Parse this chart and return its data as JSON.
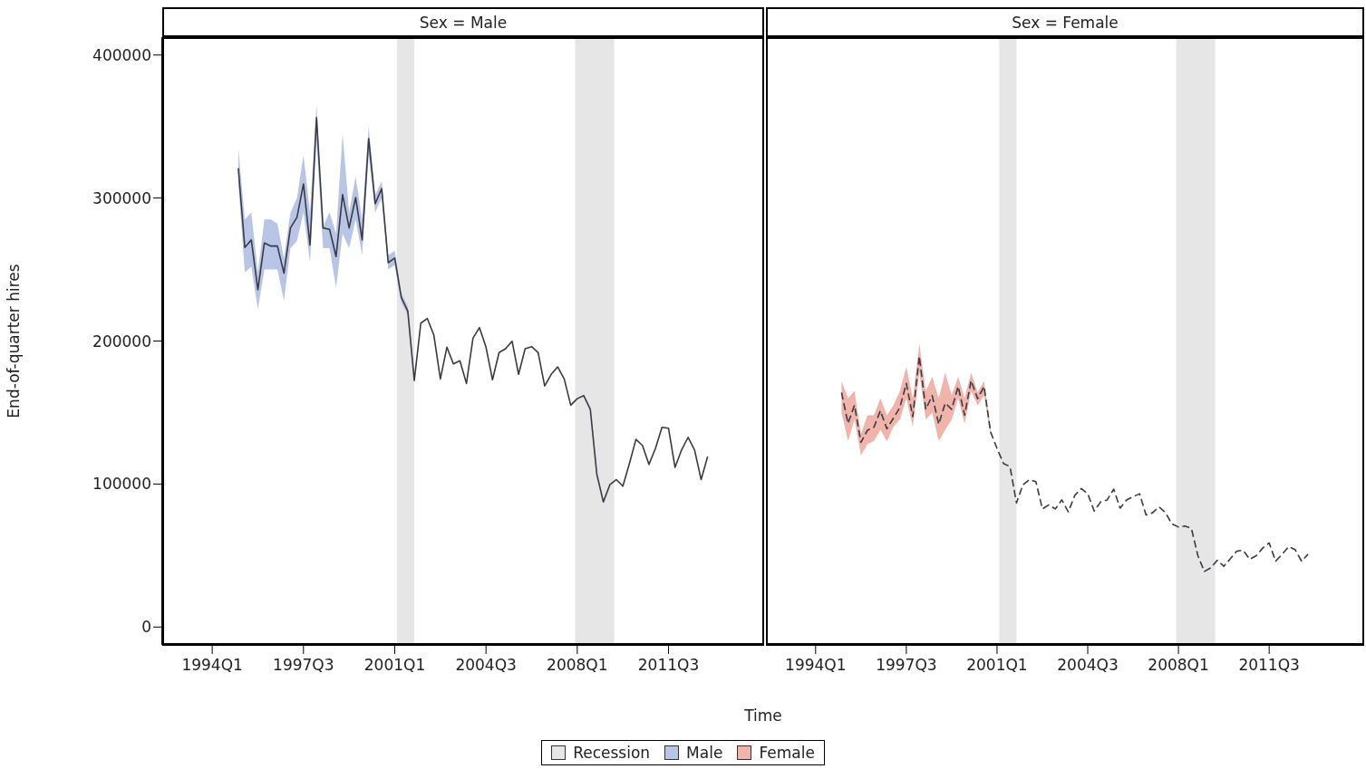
{
  "chart_data": [
    {
      "type": "line",
      "title": "Sex = Male",
      "xlabel": "Time",
      "ylabel": "End-of-quarter hires",
      "xlim": [
        "1992-02",
        "2015-03"
      ],
      "ylim": [
        -12500,
        412500
      ],
      "xticks": [
        {
          "value": "1994-01",
          "label": "1994Q1"
        },
        {
          "value": "1997-07",
          "label": "1997Q3"
        },
        {
          "value": "2001-01",
          "label": "2001Q1"
        },
        {
          "value": "2004-07",
          "label": "2004Q3"
        },
        {
          "value": "2008-01",
          "label": "2008Q1"
        },
        {
          "value": "2011-07",
          "label": "2011Q3"
        }
      ],
      "yticks": [
        0,
        100000,
        200000,
        300000,
        400000
      ],
      "legend": "bottom",
      "line_style": "solid",
      "bands": [
        {
          "axis": "x",
          "from": "2001-02",
          "to": "2001-10",
          "label": "Recession",
          "color": "#e6e6e6"
        },
        {
          "axis": "x",
          "from": "2007-12",
          "to": "2009-06",
          "color": "#e6e6e6"
        }
      ],
      "x": [
        "1995-01",
        "1995-04",
        "1995-07",
        "1995-10",
        "1996-01",
        "1996-04",
        "1996-07",
        "1996-10",
        "1997-01",
        "1997-04",
        "1997-07",
        "1997-10",
        "1998-01",
        "1998-04",
        "1998-07",
        "1998-10",
        "1999-01",
        "1999-04",
        "1999-07",
        "1999-10",
        "2000-01",
        "2000-04",
        "2000-07",
        "2000-10",
        "2001-01",
        "2001-04",
        "2001-07",
        "2001-10",
        "2002-01",
        "2002-04",
        "2002-07",
        "2002-10",
        "2003-01",
        "2003-04",
        "2003-07",
        "2003-10",
        "2004-01",
        "2004-04",
        "2004-07",
        "2004-10",
        "2005-01",
        "2005-04",
        "2005-07",
        "2005-10",
        "2006-01",
        "2006-04",
        "2006-07",
        "2006-10",
        "2007-01",
        "2007-04",
        "2007-07",
        "2007-10",
        "2008-01",
        "2008-04",
        "2008-07",
        "2008-10",
        "2009-01",
        "2009-04",
        "2009-07",
        "2009-10",
        "2010-01",
        "2010-04",
        "2010-07",
        "2010-10",
        "2011-01",
        "2011-04",
        "2011-07",
        "2011-10",
        "2012-01",
        "2012-04",
        "2012-07",
        "2012-10",
        "2013-01"
      ],
      "series": [
        {
          "name": "Male",
          "type": "area",
          "color": "#b8c5e6",
          "values": [
            null,
            null,
            null,
            null,
            null,
            null,
            null,
            null,
            null,
            null,
            null,
            null,
            null,
            null,
            null,
            null,
            null,
            null,
            null,
            null,
            null,
            null,
            null,
            null,
            null,
            null,
            null,
            null,
            null,
            null,
            null,
            null,
            null,
            null,
            null,
            null,
            null,
            null,
            null,
            null,
            null,
            null,
            null,
            null,
            null,
            null,
            null,
            null,
            null,
            null,
            null,
            null,
            null,
            null,
            null,
            null,
            null,
            null,
            null,
            null,
            null,
            null,
            null,
            null,
            null,
            null,
            null,
            null,
            null,
            null,
            null,
            null,
            null
          ],
          "lower": [
            310000,
            248000,
            252000,
            222000,
            250000,
            250000,
            250000,
            228000,
            265000,
            270000,
            290000,
            255000,
            340000,
            265000,
            265000,
            237000,
            275000,
            265000,
            285000,
            260000,
            330000,
            290000,
            300000,
            250000,
            253000,
            227000,
            218000,
            170000,
            null,
            null,
            null,
            null,
            null,
            null,
            null,
            null,
            null,
            null,
            null,
            null,
            null,
            null,
            null,
            null,
            null,
            null,
            null,
            null,
            null,
            null,
            null,
            null,
            null,
            null,
            null,
            null,
            null,
            null,
            null,
            null,
            null,
            null,
            null,
            null,
            null,
            null,
            null,
            null,
            null,
            null,
            null,
            null,
            null
          ],
          "upper": [
            335000,
            285000,
            290000,
            248000,
            285000,
            285000,
            282000,
            258000,
            290000,
            300000,
            330000,
            290000,
            365000,
            280000,
            290000,
            275000,
            345000,
            290000,
            315000,
            285000,
            350000,
            302000,
            312000,
            260000,
            263000,
            234000,
            224000,
            175000,
            null,
            null,
            null,
            null,
            null,
            null,
            null,
            null,
            null,
            null,
            null,
            null,
            null,
            null,
            null,
            null,
            null,
            null,
            null,
            null,
            null,
            null,
            null,
            null,
            null,
            null,
            null,
            null,
            null,
            null,
            null,
            null,
            null,
            null,
            null,
            null,
            null,
            null,
            null,
            null,
            null,
            null,
            null,
            null,
            null
          ]
        },
        {
          "type": "line",
          "color": "#3a3a44",
          "values": [
            320800,
            265400,
            270700,
            235800,
            268600,
            266400,
            266400,
            247400,
            279100,
            286500,
            309800,
            267100,
            356300,
            279100,
            278100,
            259100,
            302400,
            279100,
            300300,
            270700,
            341500,
            296000,
            306600,
            254800,
            258000,
            230500,
            221000,
            172400,
            212500,
            215700,
            204100,
            173500,
            195700,
            184000,
            186200,
            170300,
            202000,
            209400,
            195700,
            172900,
            191900,
            194600,
            199900,
            176700,
            194600,
            196100,
            191900,
            168600,
            176700,
            181900,
            173500,
            155100,
            159700,
            161800,
            152300,
            106900,
            87500,
            99500,
            103100,
            98500,
            114300,
            131200,
            127000,
            113700,
            124900,
            139700,
            139000,
            111600,
            123800,
            132700,
            123800,
            103100,
            119200
          ]
        }
      ]
    },
    {
      "type": "line",
      "title": "Sex = Female",
      "xlim": [
        "1992-02",
        "2015-03"
      ],
      "ylim": [
        -12500,
        412500
      ],
      "xticks": [
        {
          "value": "1994-01",
          "label": "1994Q1"
        },
        {
          "value": "1997-07",
          "label": "1997Q3"
        },
        {
          "value": "2001-01",
          "label": "2001Q1"
        },
        {
          "value": "2004-07",
          "label": "2004Q3"
        },
        {
          "value": "2008-01",
          "label": "2008Q1"
        },
        {
          "value": "2011-07",
          "label": "2011Q3"
        }
      ],
      "yticks": [
        0,
        100000,
        200000,
        300000,
        400000
      ],
      "tick_labels": "x",
      "legend": "bottom",
      "line_style": "dashed",
      "bands": [
        {
          "axis": "x",
          "from": "2001-02",
          "to": "2001-10",
          "color": "#e6e6e6"
        },
        {
          "axis": "x",
          "from": "2007-12",
          "to": "2009-06",
          "color": "#e6e6e6"
        }
      ],
      "x": [
        "1995-01",
        "1995-04",
        "1995-07",
        "1995-10",
        "1996-01",
        "1996-04",
        "1996-07",
        "1996-10",
        "1997-01",
        "1997-04",
        "1997-07",
        "1997-10",
        "1998-01",
        "1998-04",
        "1998-07",
        "1998-10",
        "1999-01",
        "1999-04",
        "1999-07",
        "1999-10",
        "2000-01",
        "2000-04",
        "2000-07",
        "2000-10",
        "2001-01",
        "2001-04",
        "2001-07",
        "2001-10",
        "2002-01",
        "2002-04",
        "2002-07",
        "2002-10",
        "2003-01",
        "2003-04",
        "2003-07",
        "2003-10",
        "2004-01",
        "2004-04",
        "2004-07",
        "2004-10",
        "2005-01",
        "2005-04",
        "2005-07",
        "2005-10",
        "2006-01",
        "2006-04",
        "2006-07",
        "2006-10",
        "2007-01",
        "2007-04",
        "2007-07",
        "2007-10",
        "2008-01",
        "2008-04",
        "2008-07",
        "2008-10",
        "2009-01",
        "2009-04",
        "2009-07",
        "2009-10",
        "2010-01",
        "2010-04",
        "2010-07",
        "2010-10",
        "2011-01",
        "2011-04",
        "2011-07",
        "2011-10",
        "2012-01",
        "2012-04",
        "2012-07",
        "2012-10",
        "2013-01"
      ],
      "series": [
        {
          "name": "Female",
          "type": "area",
          "color": "#f0b4aa",
          "values": [
            null,
            null,
            null,
            null,
            null,
            null,
            null,
            null,
            null,
            null,
            null,
            null,
            null,
            null,
            null,
            null,
            null,
            null,
            null,
            null,
            null,
            null,
            null,
            null,
            null,
            null,
            null,
            null,
            null,
            null,
            null,
            null,
            null,
            null,
            null,
            null,
            null,
            null,
            null,
            null,
            null,
            null,
            null,
            null,
            null,
            null,
            null,
            null,
            null,
            null,
            null,
            null,
            null,
            null,
            null,
            null,
            null,
            null,
            null,
            null,
            null,
            null,
            null,
            null,
            null,
            null,
            null,
            null,
            null,
            null,
            null,
            null,
            null
          ],
          "lower": [
            150000,
            130000,
            145000,
            120000,
            128000,
            130000,
            138000,
            130000,
            140000,
            145000,
            160000,
            140000,
            178000,
            145000,
            150000,
            130000,
            138000,
            145000,
            160000,
            142000,
            165000,
            155000,
            162000,
            134000,
            null,
            null,
            null,
            null,
            null,
            null,
            null,
            null,
            null,
            null,
            null,
            null,
            null,
            null,
            null,
            null,
            null,
            null,
            null,
            null,
            null,
            null,
            null,
            null,
            null,
            null,
            null,
            null,
            null,
            null,
            null,
            null,
            null,
            null,
            null,
            null,
            null,
            null,
            null,
            null,
            null,
            null,
            null,
            null,
            null,
            null,
            null,
            null,
            null
          ],
          "upper": [
            172000,
            160000,
            165000,
            135000,
            148000,
            148000,
            160000,
            148000,
            155000,
            165000,
            182000,
            160000,
            198000,
            165000,
            175000,
            160000,
            178000,
            162000,
            175000,
            160000,
            178000,
            164000,
            172000,
            139000,
            null,
            null,
            null,
            null,
            null,
            null,
            null,
            null,
            null,
            null,
            null,
            null,
            null,
            null,
            null,
            null,
            null,
            null,
            null,
            null,
            null,
            null,
            null,
            null,
            null,
            null,
            null,
            null,
            null,
            null,
            null,
            null,
            null,
            null,
            null,
            null,
            null,
            null,
            null,
            null,
            null,
            null,
            null,
            null,
            null,
            null,
            null,
            null,
            null
          ]
        },
        {
          "type": "line",
          "color": "#3a3a44",
          "values": [
            164000,
            142400,
            155100,
            129100,
            137600,
            139700,
            151300,
            138600,
            146000,
            153400,
            170300,
            147100,
            189300,
            152300,
            161800,
            141800,
            156600,
            152300,
            168200,
            148100,
            172400,
            159700,
            168200,
            136500,
            124900,
            114300,
            112200,
            86800,
            99500,
            103100,
            101600,
            82600,
            85400,
            82600,
            88900,
            80500,
            92100,
            96800,
            93200,
            81100,
            87500,
            88900,
            96400,
            83200,
            88900,
            91100,
            93200,
            78400,
            79900,
            84100,
            79900,
            72100,
            69900,
            70600,
            68900,
            49900,
            38900,
            41400,
            46700,
            42500,
            47700,
            53100,
            53700,
            47400,
            49900,
            55200,
            58800,
            46100,
            50900,
            56200,
            54100,
            46100,
            50900
          ]
        }
      ]
    }
  ]
}
